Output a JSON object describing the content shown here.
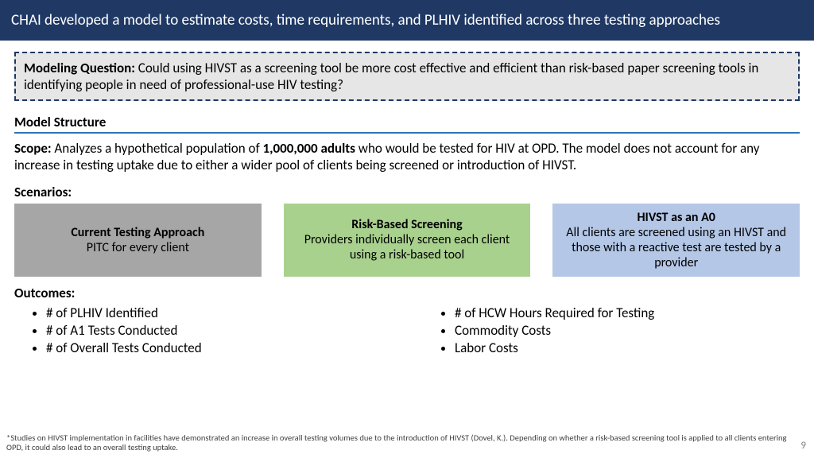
{
  "header": {
    "title": "CHAI developed a model to estimate costs, time requirements, and PLHIV identified across three testing approaches"
  },
  "question": {
    "label": "Modeling Question:",
    "text": " Could using HIVST as a screening tool be more cost effective and efficient than risk-based paper screening tools in identifying people in need of professional-use HIV testing?"
  },
  "model_structure": {
    "heading": "Model Structure",
    "scope_label": "Scope:",
    "scope_before": " Analyzes a hypothetical population of ",
    "scope_bold": "1,000,000 adults",
    "scope_after": " who would be tested for HIV at OPD. The model does not account for any increase in testing uptake due to either a wider pool of clients being screened or introduction of HIVST."
  },
  "scenarios": {
    "heading": "Scenarios:",
    "items": [
      {
        "title": "Current Testing Approach",
        "desc": "PITC for every client"
      },
      {
        "title": "Risk-Based Screening",
        "desc": "Providers individually screen each client using a risk-based tool"
      },
      {
        "title": "HIVST as an A0",
        "desc": "All clients are screened using an HIVST and those with a reactive test are tested by a provider"
      }
    ],
    "colors": [
      "#a6a6a6",
      "#a9d18e",
      "#b4c7e7"
    ]
  },
  "outcomes": {
    "heading": "Outcomes:",
    "left": [
      "# of PLHIV Identified",
      "# of A1 Tests Conducted",
      "# of Overall Tests Conducted"
    ],
    "right": [
      "# of HCW Hours Required for Testing",
      "Commodity Costs",
      "Labor Costs"
    ]
  },
  "footnote": "*Studies on HIVST implementation in facilities have demonstrated an increase in overall testing volumes due to the introduction of HIVST (Dovel, K.). Depending on whether a risk-based screening tool is applied to all clients entering OPD, it could also lead to an overall testing uptake.",
  "page_number": "9"
}
